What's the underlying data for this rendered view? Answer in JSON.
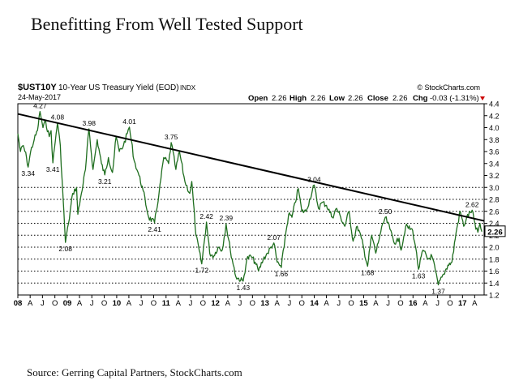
{
  "headline": "Benefitting From Well Tested Support",
  "source": "Source: Gerring Capital Partners, StockCharts.com",
  "header": {
    "symbol": "$UST10Y",
    "description": "10-Year US Treasury Yield (EOD)",
    "exchange": "INDX",
    "watermark": "© StockCharts.com",
    "date": "24-May-2017",
    "open_label": "Open",
    "open": "2.26",
    "high_label": "High",
    "high": "2.26",
    "low_label": "Low",
    "low": "2.26",
    "close_label": "Close",
    "close": "2.26",
    "chg_label": "Chg",
    "chg": "-0.03 (-1.31%)"
  },
  "colors": {
    "line": "#1f6e1f",
    "trendline": "#000000",
    "chg": "#cc0000",
    "last_box": "#000000"
  },
  "chart_data": {
    "type": "line",
    "title": "$UST10Y 10-Year US Treasury Yield (EOD)",
    "xlabel": "",
    "ylabel": "",
    "ylim": [
      1.2,
      4.4
    ],
    "y_ticks": [
      "1.2",
      "1.4",
      "1.6",
      "1.8",
      "2.0",
      "2.2",
      "2.4",
      "2.6",
      "2.8",
      "3.0",
      "3.2",
      "3.4",
      "3.6",
      "3.8",
      "4.0",
      "4.2",
      "4.4"
    ],
    "x_ticks": [
      {
        "label": "08",
        "date": "2008-01-01",
        "bold": true
      },
      {
        "label": "A",
        "date": "2008-04-01"
      },
      {
        "label": "J",
        "date": "2008-07-01"
      },
      {
        "label": "O",
        "date": "2008-10-01"
      },
      {
        "label": "09",
        "date": "2009-01-01",
        "bold": true
      },
      {
        "label": "A",
        "date": "2009-04-01"
      },
      {
        "label": "J",
        "date": "2009-07-01"
      },
      {
        "label": "O",
        "date": "2009-10-01"
      },
      {
        "label": "10",
        "date": "2010-01-01",
        "bold": true
      },
      {
        "label": "A",
        "date": "2010-04-01"
      },
      {
        "label": "J",
        "date": "2010-07-01"
      },
      {
        "label": "O",
        "date": "2010-10-01"
      },
      {
        "label": "11",
        "date": "2011-01-01",
        "bold": true
      },
      {
        "label": "A",
        "date": "2011-04-01"
      },
      {
        "label": "J",
        "date": "2011-07-01"
      },
      {
        "label": "O",
        "date": "2011-10-01"
      },
      {
        "label": "12",
        "date": "2012-01-01",
        "bold": true
      },
      {
        "label": "A",
        "date": "2012-04-01"
      },
      {
        "label": "J",
        "date": "2012-07-01"
      },
      {
        "label": "O",
        "date": "2012-10-01"
      },
      {
        "label": "13",
        "date": "2013-01-01",
        "bold": true
      },
      {
        "label": "A",
        "date": "2013-04-01"
      },
      {
        "label": "J",
        "date": "2013-07-01"
      },
      {
        "label": "O",
        "date": "2013-10-01"
      },
      {
        "label": "14",
        "date": "2014-01-01",
        "bold": true
      },
      {
        "label": "A",
        "date": "2014-04-01"
      },
      {
        "label": "J",
        "date": "2014-07-01"
      },
      {
        "label": "O",
        "date": "2014-10-01"
      },
      {
        "label": "15",
        "date": "2015-01-01",
        "bold": true
      },
      {
        "label": "A",
        "date": "2015-04-01"
      },
      {
        "label": "J",
        "date": "2015-07-01"
      },
      {
        "label": "O",
        "date": "2015-10-01"
      },
      {
        "label": "16",
        "date": "2016-01-01",
        "bold": true
      },
      {
        "label": "A",
        "date": "2016-04-01"
      },
      {
        "label": "J",
        "date": "2016-07-01"
      },
      {
        "label": "O",
        "date": "2016-10-01"
      },
      {
        "label": "17",
        "date": "2017-01-01",
        "bold": true
      },
      {
        "label": "A",
        "date": "2017-04-01"
      }
    ],
    "x_range": [
      "2008-01-01",
      "2017-06-10"
    ],
    "dotted_support_levels": [
      1.4,
      1.6,
      1.8,
      2.0,
      2.2,
      2.4,
      2.6,
      2.8,
      3.0
    ],
    "trendline": [
      {
        "x": "2008-01-01",
        "y": 4.23
      },
      {
        "x": "2017-06-10",
        "y": 2.44
      }
    ],
    "last_value": "2.26",
    "series": [
      {
        "points": [
          {
            "x": "2008-01-01",
            "y": 3.9
          },
          {
            "x": "2008-01-20",
            "y": 3.6
          },
          {
            "x": "2008-02-10",
            "y": 3.7
          },
          {
            "x": "2008-03-05",
            "y": 3.5
          },
          {
            "x": "2008-03-17",
            "y": 3.34
          },
          {
            "x": "2008-04-05",
            "y": 3.6
          },
          {
            "x": "2008-05-01",
            "y": 3.8
          },
          {
            "x": "2008-05-25",
            "y": 3.95
          },
          {
            "x": "2008-06-13",
            "y": 4.27
          },
          {
            "x": "2008-07-05",
            "y": 4.0
          },
          {
            "x": "2008-07-25",
            "y": 4.1
          },
          {
            "x": "2008-08-20",
            "y": 3.85
          },
          {
            "x": "2008-09-03",
            "y": 3.95
          },
          {
            "x": "2008-09-16",
            "y": 3.41
          },
          {
            "x": "2008-10-10",
            "y": 3.9
          },
          {
            "x": "2008-10-20",
            "y": 4.08
          },
          {
            "x": "2008-11-10",
            "y": 3.7
          },
          {
            "x": "2008-12-01",
            "y": 2.8
          },
          {
            "x": "2008-12-18",
            "y": 2.08
          },
          {
            "x": "2009-01-10",
            "y": 2.4
          },
          {
            "x": "2009-02-10",
            "y": 2.9
          },
          {
            "x": "2009-03-10",
            "y": 3.0
          },
          {
            "x": "2009-03-20",
            "y": 2.55
          },
          {
            "x": "2009-04-15",
            "y": 2.9
          },
          {
            "x": "2009-05-15",
            "y": 3.3
          },
          {
            "x": "2009-06-10",
            "y": 3.98
          },
          {
            "x": "2009-07-10",
            "y": 3.3
          },
          {
            "x": "2009-08-10",
            "y": 3.8
          },
          {
            "x": "2009-09-10",
            "y": 3.4
          },
          {
            "x": "2009-10-05",
            "y": 3.21
          },
          {
            "x": "2009-11-01",
            "y": 3.5
          },
          {
            "x": "2009-12-01",
            "y": 3.25
          },
          {
            "x": "2009-12-28",
            "y": 3.85
          },
          {
            "x": "2010-01-20",
            "y": 3.6
          },
          {
            "x": "2010-02-20",
            "y": 3.7
          },
          {
            "x": "2010-03-20",
            "y": 3.9
          },
          {
            "x": "2010-04-05",
            "y": 4.01
          },
          {
            "x": "2010-05-10",
            "y": 3.45
          },
          {
            "x": "2010-06-15",
            "y": 3.2
          },
          {
            "x": "2010-07-15",
            "y": 2.95
          },
          {
            "x": "2010-08-25",
            "y": 2.5
          },
          {
            "x": "2010-10-08",
            "y": 2.41
          },
          {
            "x": "2010-11-10",
            "y": 2.9
          },
          {
            "x": "2010-12-15",
            "y": 3.5
          },
          {
            "x": "2011-01-20",
            "y": 3.4
          },
          {
            "x": "2011-02-08",
            "y": 3.75
          },
          {
            "x": "2011-03-15",
            "y": 3.3
          },
          {
            "x": "2011-04-10",
            "y": 3.6
          },
          {
            "x": "2011-05-20",
            "y": 3.1
          },
          {
            "x": "2011-06-25",
            "y": 2.9
          },
          {
            "x": "2011-07-10",
            "y": 3.1
          },
          {
            "x": "2011-08-10",
            "y": 2.2
          },
          {
            "x": "2011-09-22",
            "y": 1.72
          },
          {
            "x": "2011-10-27",
            "y": 2.42
          },
          {
            "x": "2011-11-20",
            "y": 1.9
          },
          {
            "x": "2011-12-20",
            "y": 1.85
          },
          {
            "x": "2012-01-20",
            "y": 2.0
          },
          {
            "x": "2012-02-20",
            "y": 1.95
          },
          {
            "x": "2012-03-20",
            "y": 2.39
          },
          {
            "x": "2012-04-20",
            "y": 1.95
          },
          {
            "x": "2012-06-01",
            "y": 1.5
          },
          {
            "x": "2012-07-24",
            "y": 1.43
          },
          {
            "x": "2012-08-20",
            "y": 1.8
          },
          {
            "x": "2012-09-20",
            "y": 1.85
          },
          {
            "x": "2012-10-20",
            "y": 1.75
          },
          {
            "x": "2012-11-15",
            "y": 1.6
          },
          {
            "x": "2012-12-20",
            "y": 1.8
          },
          {
            "x": "2013-01-20",
            "y": 1.9
          },
          {
            "x": "2013-03-08",
            "y": 2.07
          },
          {
            "x": "2013-04-01",
            "y": 1.75
          },
          {
            "x": "2013-05-02",
            "y": 1.66
          },
          {
            "x": "2013-05-30",
            "y": 2.15
          },
          {
            "x": "2013-06-25",
            "y": 2.55
          },
          {
            "x": "2013-07-20",
            "y": 2.5
          },
          {
            "x": "2013-09-05",
            "y": 2.98
          },
          {
            "x": "2013-10-01",
            "y": 2.6
          },
          {
            "x": "2013-11-01",
            "y": 2.6
          },
          {
            "x": "2013-12-31",
            "y": 3.04
          },
          {
            "x": "2014-02-01",
            "y": 2.65
          },
          {
            "x": "2014-03-01",
            "y": 2.75
          },
          {
            "x": "2014-04-01",
            "y": 2.7
          },
          {
            "x": "2014-05-15",
            "y": 2.5
          },
          {
            "x": "2014-06-15",
            "y": 2.65
          },
          {
            "x": "2014-07-15",
            "y": 2.5
          },
          {
            "x": "2014-08-15",
            "y": 2.35
          },
          {
            "x": "2014-09-15",
            "y": 2.6
          },
          {
            "x": "2014-10-15",
            "y": 2.1
          },
          {
            "x": "2014-11-15",
            "y": 2.35
          },
          {
            "x": "2014-12-15",
            "y": 2.15
          },
          {
            "x": "2015-01-30",
            "y": 1.68
          },
          {
            "x": "2015-03-01",
            "y": 2.2
          },
          {
            "x": "2015-04-01",
            "y": 1.9
          },
          {
            "x": "2015-05-01",
            "y": 2.2
          },
          {
            "x": "2015-06-10",
            "y": 2.5
          },
          {
            "x": "2015-07-15",
            "y": 2.3
          },
          {
            "x": "2015-08-25",
            "y": 2.05
          },
          {
            "x": "2015-09-20",
            "y": 2.15
          },
          {
            "x": "2015-10-05",
            "y": 1.95
          },
          {
            "x": "2015-11-08",
            "y": 2.35
          },
          {
            "x": "2015-12-30",
            "y": 2.28
          },
          {
            "x": "2016-01-20",
            "y": 2.0
          },
          {
            "x": "2016-02-11",
            "y": 1.63
          },
          {
            "x": "2016-03-15",
            "y": 1.95
          },
          {
            "x": "2016-04-20",
            "y": 1.8
          },
          {
            "x": "2016-05-20",
            "y": 1.85
          },
          {
            "x": "2016-06-15",
            "y": 1.6
          },
          {
            "x": "2016-07-06",
            "y": 1.37
          },
          {
            "x": "2016-08-15",
            "y": 1.55
          },
          {
            "x": "2016-09-15",
            "y": 1.7
          },
          {
            "x": "2016-10-15",
            "y": 1.75
          },
          {
            "x": "2016-11-15",
            "y": 2.25
          },
          {
            "x": "2016-12-15",
            "y": 2.6
          },
          {
            "x": "2017-01-10",
            "y": 2.35
          },
          {
            "x": "2017-02-01",
            "y": 2.5
          },
          {
            "x": "2017-03-13",
            "y": 2.62
          },
          {
            "x": "2017-04-10",
            "y": 2.3
          },
          {
            "x": "2017-04-25",
            "y": 2.25
          },
          {
            "x": "2017-05-10",
            "y": 2.4
          },
          {
            "x": "2017-05-24",
            "y": 2.26
          }
        ]
      }
    ],
    "annotations": [
      {
        "x": "2008-03-17",
        "y": 3.34,
        "label": "3.34",
        "pos": "below"
      },
      {
        "x": "2008-06-13",
        "y": 4.27,
        "label": "4.27",
        "pos": "above"
      },
      {
        "x": "2008-09-16",
        "y": 3.41,
        "label": "3.41",
        "pos": "below"
      },
      {
        "x": "2008-10-20",
        "y": 4.08,
        "label": "4.08",
        "pos": "above"
      },
      {
        "x": "2008-12-18",
        "y": 2.08,
        "label": "2.08",
        "pos": "below"
      },
      {
        "x": "2009-06-10",
        "y": 3.98,
        "label": "3.98",
        "pos": "above"
      },
      {
        "x": "2009-10-05",
        "y": 3.21,
        "label": "3.21",
        "pos": "below"
      },
      {
        "x": "2010-04-05",
        "y": 4.01,
        "label": "4.01",
        "pos": "above"
      },
      {
        "x": "2010-10-08",
        "y": 2.41,
        "label": "2.41",
        "pos": "below"
      },
      {
        "x": "2011-02-08",
        "y": 3.75,
        "label": "3.75",
        "pos": "above"
      },
      {
        "x": "2011-09-22",
        "y": 1.72,
        "label": "1.72",
        "pos": "below"
      },
      {
        "x": "2011-10-27",
        "y": 2.42,
        "label": "2.42",
        "pos": "above"
      },
      {
        "x": "2012-03-20",
        "y": 2.39,
        "label": "2.39",
        "pos": "above"
      },
      {
        "x": "2012-07-24",
        "y": 1.43,
        "label": "1.43",
        "pos": "below"
      },
      {
        "x": "2013-03-08",
        "y": 2.07,
        "label": "2.07",
        "pos": "above"
      },
      {
        "x": "2013-05-02",
        "y": 1.66,
        "label": "1.66",
        "pos": "below"
      },
      {
        "x": "2013-12-31",
        "y": 3.04,
        "label": "3.04",
        "pos": "above"
      },
      {
        "x": "2015-01-30",
        "y": 1.68,
        "label": "1.68",
        "pos": "below"
      },
      {
        "x": "2015-06-10",
        "y": 2.5,
        "label": "2.50",
        "pos": "above"
      },
      {
        "x": "2016-02-11",
        "y": 1.63,
        "label": "1.63",
        "pos": "below"
      },
      {
        "x": "2016-07-06",
        "y": 1.37,
        "label": "1.37",
        "pos": "below"
      },
      {
        "x": "2017-03-13",
        "y": 2.62,
        "label": "2.62",
        "pos": "above"
      }
    ]
  }
}
